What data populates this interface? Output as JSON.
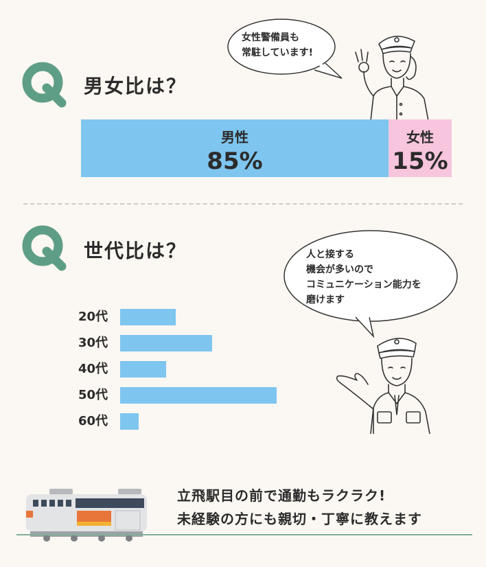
{
  "section1": {
    "title": "男女比は？",
    "bubble_lines": [
      "女性警備員も",
      "常駐しています!"
    ],
    "male": {
      "label": "男性",
      "percent": "85%",
      "share": 0.85
    },
    "female": {
      "label": "女性",
      "percent": "15%",
      "share": 0.15
    }
  },
  "section2": {
    "title": "世代比は？",
    "bubble_lines": [
      "人と接する",
      "機会が多いので",
      "コミュニケーション能力を",
      "磨けます"
    ],
    "ages": [
      {
        "label": "20代",
        "level": 0.35
      },
      {
        "label": "30代",
        "level": 0.58
      },
      {
        "label": "40代",
        "level": 0.29
      },
      {
        "label": "50代",
        "level": 1.0
      },
      {
        "label": "60代",
        "level": 0.12
      }
    ]
  },
  "footer": {
    "line1": "立飛駅目の前で通勤もラクラク!",
    "line2": "未経験の方にも親切・丁寧に教えます"
  },
  "colors": {
    "accent": "#5f9e86",
    "bar_blue": "#7ec5ef",
    "bar_pink": "#f7c5dd",
    "background": "#fbf7f2"
  }
}
